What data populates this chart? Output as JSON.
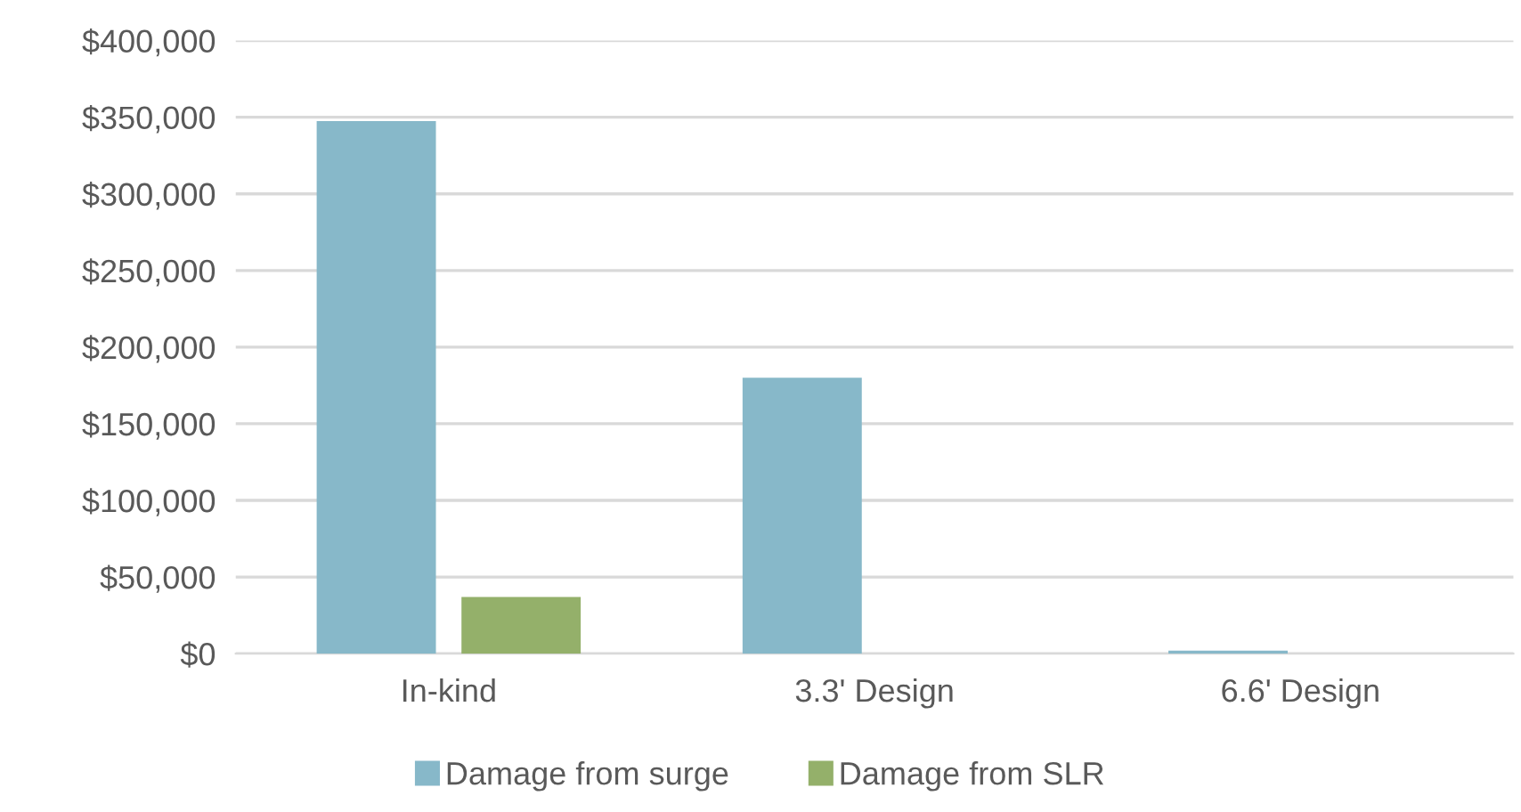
{
  "chart_data": {
    "type": "bar",
    "categories": [
      "In-kind",
      "3.3' Design",
      "6.6' Design"
    ],
    "series": [
      {
        "name": "Damage from surge",
        "color": "#87b8c9",
        "values": [
          347500,
          180000,
          2000
        ]
      },
      {
        "name": "Damage from SLR",
        "color": "#94b06a",
        "values": [
          37000,
          0,
          0
        ]
      }
    ],
    "ylim": [
      0,
      400000
    ],
    "yticks": [
      {
        "value": 0,
        "label": "$0"
      },
      {
        "value": 50000,
        "label": "$50,000"
      },
      {
        "value": 100000,
        "label": "$100,000"
      },
      {
        "value": 150000,
        "label": "$150,000"
      },
      {
        "value": 200000,
        "label": "$200,000"
      },
      {
        "value": 250000,
        "label": "$250,000"
      },
      {
        "value": 300000,
        "label": "$300,000"
      },
      {
        "value": 350000,
        "label": "$350,000"
      },
      {
        "value": 400000,
        "label": "$400,000"
      }
    ],
    "grid": "y",
    "legend": "bottom"
  }
}
